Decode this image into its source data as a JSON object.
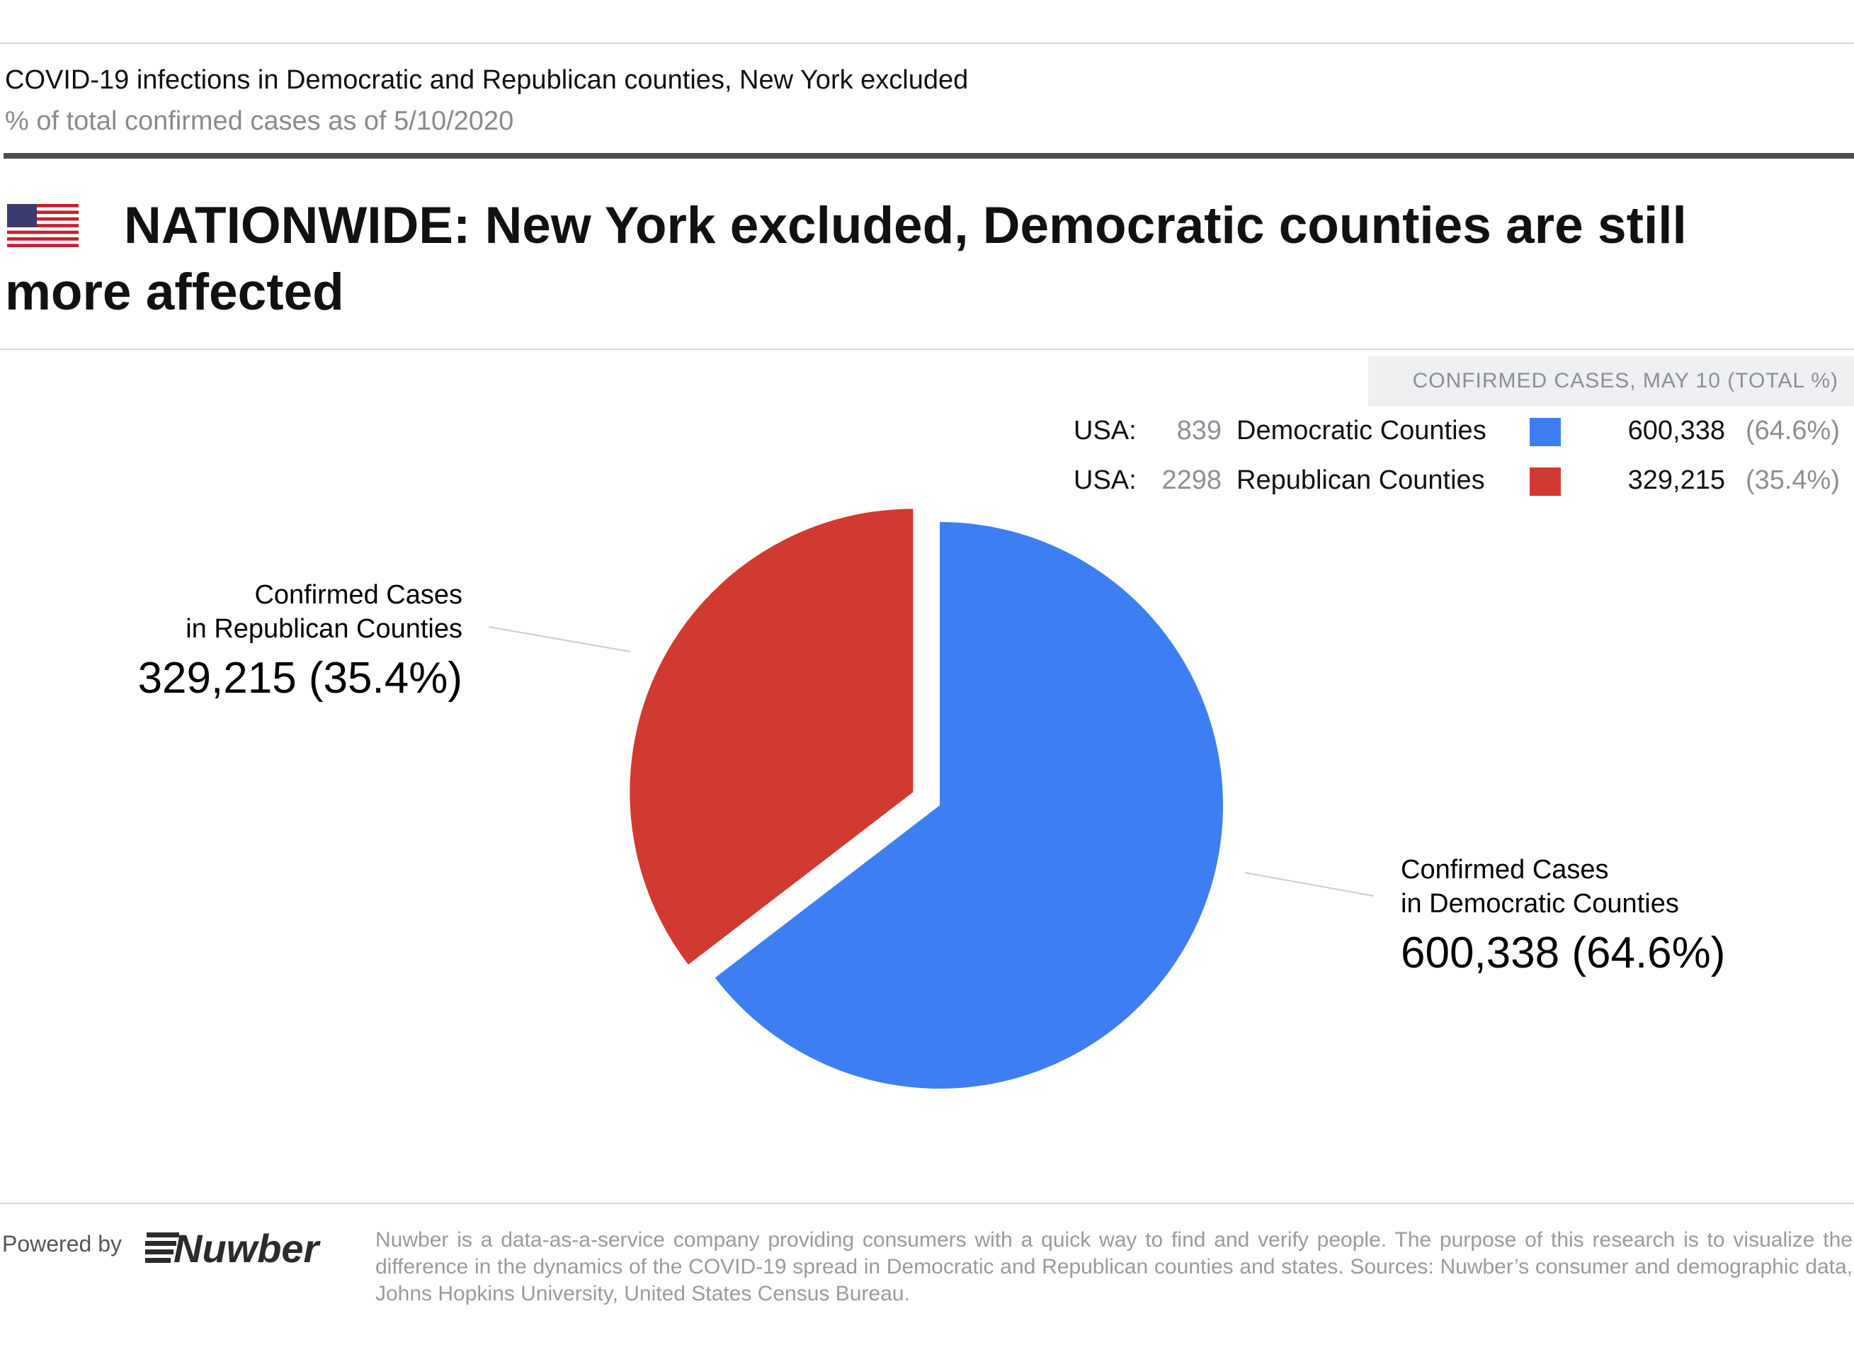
{
  "header": {
    "title": "COVID-19 infections in Democratic and Republican counties, New York excluded",
    "subtitle": "% of total confirmed cases as of 5/10/2020"
  },
  "headline": {
    "flag_icon": "us-flag-icon",
    "text": "NATIONWIDE: New York excluded, Democratic counties are still more affected"
  },
  "legend": {
    "header": "CONFIRMED CASES, MAY 10 (TOTAL %)",
    "rows": [
      {
        "prefix": "USA:",
        "count": "839",
        "name": "Democratic Counties",
        "value": "600,338",
        "pct": "(64.6%)",
        "color": "#3d7ff2"
      },
      {
        "prefix": "USA:",
        "count": "2298",
        "name": "Republican Counties",
        "value": "329,215",
        "pct": "(35.4%)",
        "color": "#d13a30"
      }
    ]
  },
  "chart_data": {
    "type": "pie",
    "title": "",
    "slices": [
      {
        "label": "Democratic Counties",
        "value": 600338,
        "percent": 64.6,
        "color": "#3d7ff2"
      },
      {
        "label": "Republican Counties",
        "value": 329215,
        "percent": 35.4,
        "color": "#d13a30",
        "exploded": true
      }
    ],
    "callouts": [
      {
        "line1": "Confirmed Cases",
        "line2": "in Republican Counties",
        "value": "329,215 (35.4%)"
      },
      {
        "line1": "Confirmed Cases",
        "line2": "in Democratic Counties",
        "value": "600,338 (64.6%)"
      }
    ]
  },
  "footer": {
    "powered_by": "Powered by",
    "logo_text": "Nuwber",
    "note": "Nuwber is a data-as-a-service company providing consumers with a quick way to find and verify people. The purpose of this research is to visualize the difference in the dynamics of the COVID-19 spread in Democratic and Republican counties and states. Sources: Nuwber’s consumer and demographic data, Johns Hopkins University, United States Census Bureau."
  }
}
